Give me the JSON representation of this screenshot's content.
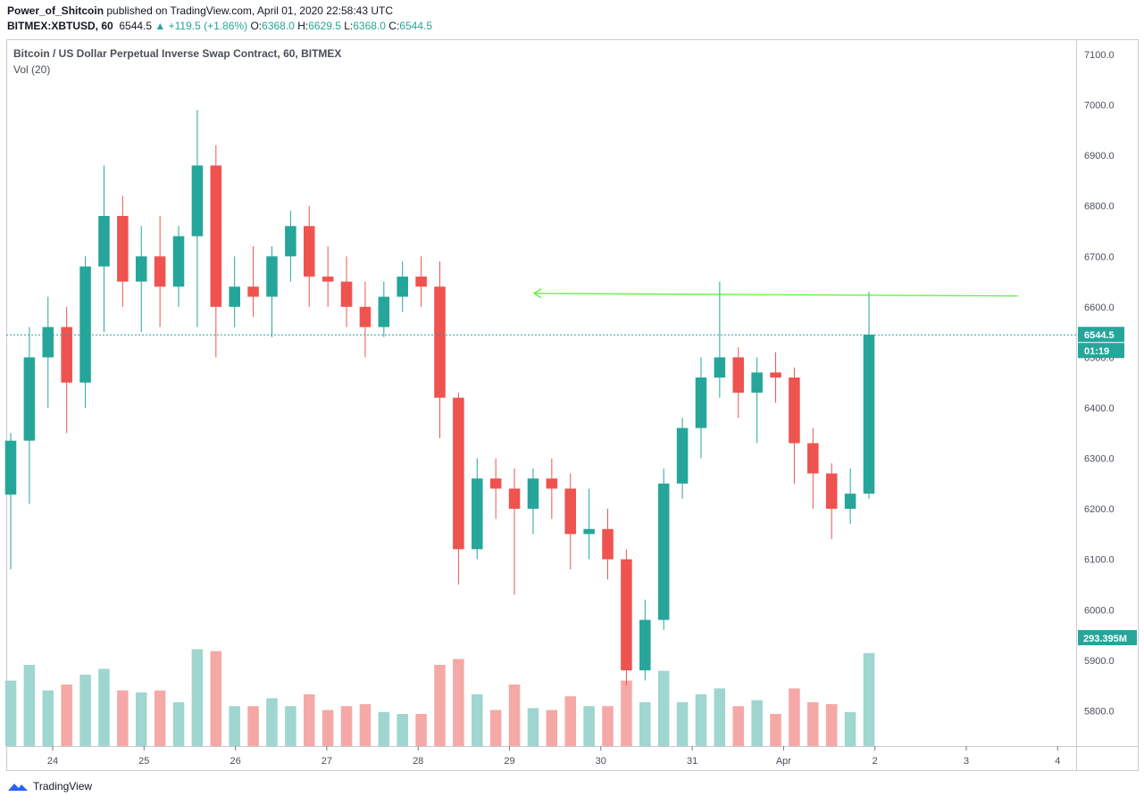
{
  "header": {
    "author": "Power_of_Shitcoin",
    "published_text": " published on TradingView.com, April 01, 2020 22:58:43 UTC",
    "symbol": "BITMEX:XBTUSD, 60",
    "last": "6544.5",
    "change": "▲ +119.5 (+1.86%)",
    "o_label": "O:",
    "o": "6368.0",
    "h_label": "H:",
    "h": "6629.5",
    "l_label": "L:",
    "l": "6368.0",
    "c_label": "C:",
    "c": "6544.5"
  },
  "pane": {
    "title": "Bitcoin / US Dollar Perpetual Inverse Swap Contract, 60, BITMEX",
    "indicator": "Vol (20)"
  },
  "price_axis": {
    "ticks": [
      "7100.0",
      "7000.0",
      "6900.0",
      "6800.0",
      "6700.0",
      "6600.0",
      "6500.0",
      "6400.0",
      "6300.0",
      "6200.0",
      "6100.0",
      "6000.0",
      "5900.0",
      "5800.0"
    ],
    "last_price_label": "6544.5",
    "countdown_label": "01:19",
    "volume_label": "293.395M"
  },
  "time_axis": {
    "ticks": [
      "24",
      "25",
      "26",
      "27",
      "28",
      "29",
      "30",
      "31",
      "Apr",
      "2",
      "3",
      "4"
    ]
  },
  "footer": {
    "brand": "TradingView",
    "logo_icon": "tradingview-logo-icon"
  },
  "colors": {
    "up": "#26a69a",
    "down": "#ef5350",
    "vol_up": "#9fd6cf",
    "vol_down": "#f5a9a7",
    "annotation": "#4ff22b"
  },
  "chart_data": {
    "type": "candlestick",
    "timeframe": "60",
    "ylim": [
      5730,
      7130
    ],
    "last_price": 6544.5,
    "annotation": {
      "type": "horizontal_arrow",
      "price": 6625
    },
    "candles": [
      [
        6228,
        6350,
        6080,
        6335
      ],
      [
        6335,
        6560,
        6210,
        6500
      ],
      [
        6500,
        6620,
        6400,
        6560
      ],
      [
        6560,
        6600,
        6350,
        6450
      ],
      [
        6450,
        6700,
        6400,
        6680
      ],
      [
        6680,
        6880,
        6550,
        6780
      ],
      [
        6780,
        6820,
        6600,
        6650
      ],
      [
        6650,
        6760,
        6550,
        6700
      ],
      [
        6700,
        6780,
        6560,
        6640
      ],
      [
        6640,
        6760,
        6600,
        6740
      ],
      [
        6740,
        6990,
        6560,
        6880
      ],
      [
        6880,
        6920,
        6500,
        6600
      ],
      [
        6600,
        6700,
        6560,
        6640
      ],
      [
        6640,
        6720,
        6580,
        6620
      ],
      [
        6620,
        6720,
        6540,
        6700
      ],
      [
        6700,
        6790,
        6650,
        6760
      ],
      [
        6760,
        6800,
        6600,
        6660
      ],
      [
        6660,
        6720,
        6600,
        6650
      ],
      [
        6650,
        6700,
        6560,
        6600
      ],
      [
        6600,
        6650,
        6500,
        6560
      ],
      [
        6560,
        6650,
        6540,
        6620
      ],
      [
        6620,
        6690,
        6590,
        6660
      ],
      [
        6660,
        6700,
        6600,
        6640
      ],
      [
        6640,
        6690,
        6340,
        6420
      ],
      [
        6420,
        6430,
        6050,
        6120
      ],
      [
        6120,
        6300,
        6100,
        6260
      ],
      [
        6260,
        6300,
        6180,
        6240
      ],
      [
        6240,
        6280,
        6030,
        6200
      ],
      [
        6200,
        6280,
        6150,
        6260
      ],
      [
        6260,
        6300,
        6180,
        6240
      ],
      [
        6240,
        6270,
        6080,
        6150
      ],
      [
        6150,
        6240,
        6100,
        6160
      ],
      [
        6160,
        6200,
        6060,
        6100
      ],
      [
        6100,
        6120,
        5850,
        5880
      ],
      [
        5880,
        6020,
        5860,
        5980
      ],
      [
        5980,
        6280,
        5960,
        6250
      ],
      [
        6250,
        6380,
        6220,
        6360
      ],
      [
        6360,
        6500,
        6300,
        6460
      ],
      [
        6460,
        6650,
        6420,
        6500
      ],
      [
        6500,
        6520,
        6380,
        6430
      ],
      [
        6430,
        6500,
        6330,
        6470
      ],
      [
        6470,
        6510,
        6410,
        6460
      ],
      [
        6460,
        6480,
        6250,
        6330
      ],
      [
        6330,
        6360,
        6200,
        6270
      ],
      [
        6270,
        6290,
        6140,
        6200
      ],
      [
        6200,
        6280,
        6170,
        6230
      ],
      [
        6230,
        6630,
        6220,
        6545
      ]
    ]
  }
}
